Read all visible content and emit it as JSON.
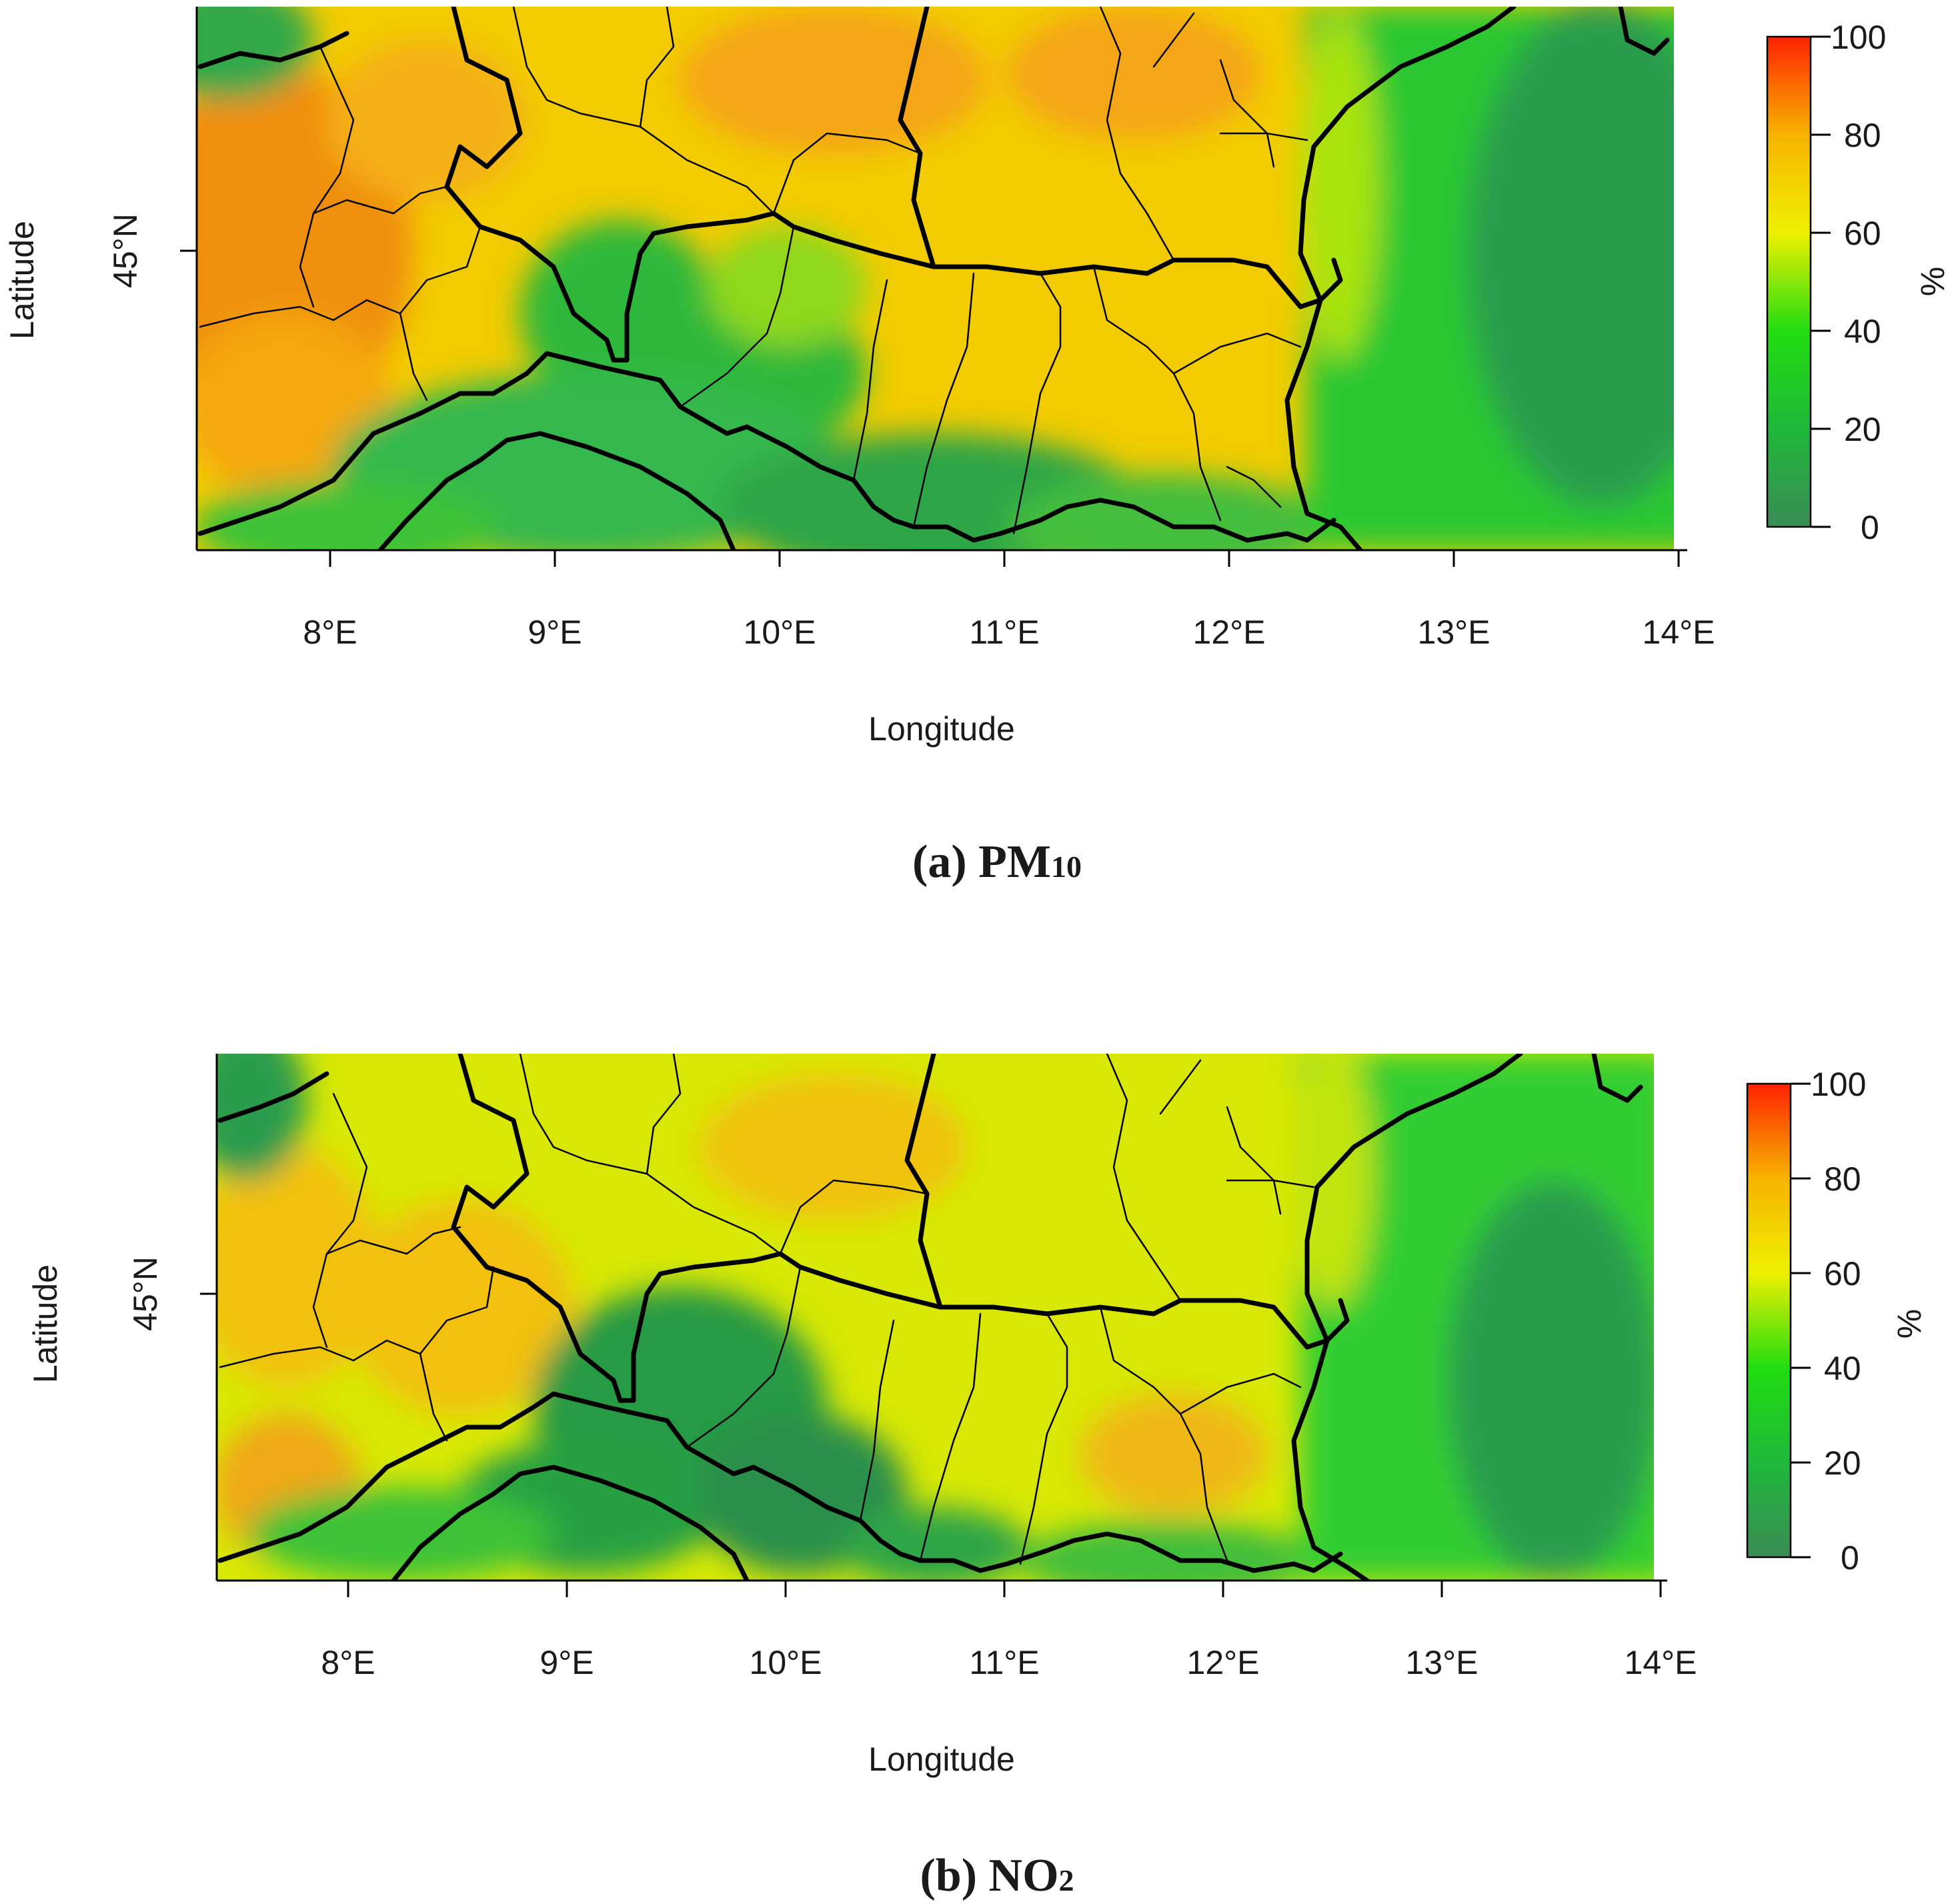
{
  "figure": {
    "panels": [
      {
        "id": "a",
        "caption_prefix": "(a) PM",
        "caption_sub": "10",
        "pollutant": "PM10"
      },
      {
        "id": "b",
        "caption_prefix": "(b) NO",
        "caption_sub": "2",
        "pollutant": "NO2"
      }
    ],
    "x_axis": {
      "label": "Longitude",
      "ticks": [
        "8°E",
        "9°E",
        "10°E",
        "11°E",
        "12°E",
        "13°E",
        "14°E"
      ],
      "tick_values": [
        8,
        9,
        10,
        11,
        12,
        13,
        14
      ],
      "range": [
        7.4,
        14
      ]
    },
    "y_axis": {
      "label": "Latitude",
      "ticks": [
        "45°N"
      ],
      "tick_values": [
        45
      ],
      "range": [
        44.1,
        45.9
      ]
    },
    "colorbar": {
      "unit": "%",
      "ticks": [
        "0",
        "20",
        "40",
        "60",
        "80",
        "100"
      ],
      "tick_values": [
        0,
        20,
        40,
        60,
        80,
        100
      ],
      "colors": [
        "#3a8c56",
        "#1fb83a",
        "#22dd11",
        "#eef000",
        "#f7b300",
        "#ff2200"
      ]
    }
  },
  "chart_data": {
    "type": "heatmap",
    "title": "",
    "xlabel": "Longitude",
    "ylabel": "Latitude",
    "zlabel": "%",
    "xlim": [
      7.4,
      14
    ],
    "ylim": [
      44.1,
      45.9
    ],
    "zlim": [
      0,
      100
    ],
    "panels": [
      "(a) PM10",
      "(b) NO2"
    ]
  }
}
